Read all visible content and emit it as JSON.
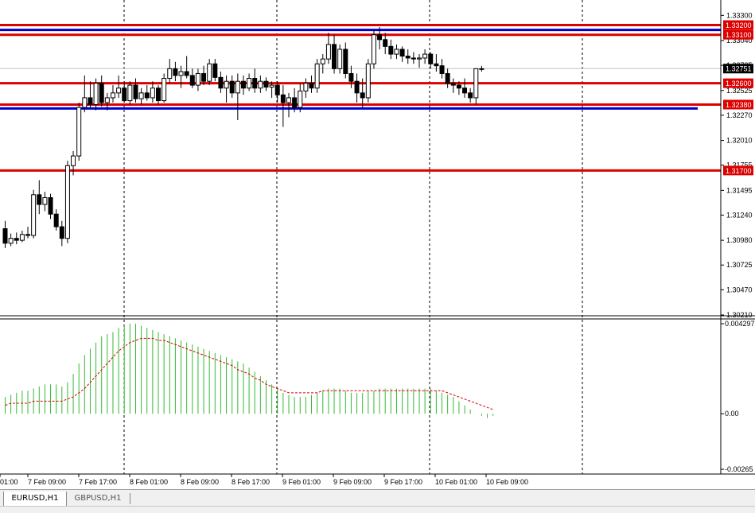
{
  "colors": {
    "candle": "#000000",
    "hline_red": "#dd0000",
    "hline_blue": "#0000cc",
    "bid_line": "#c0c0c0",
    "histogram": "#33bb33",
    "signal": "#dd0000",
    "grid": "#000000",
    "label_red_bg": "#dd0000",
    "label_dark_bg": "#000000"
  },
  "price_axis": {
    "ticks": [
      "1.33300",
      "1.33040",
      "1.32785",
      "1.32525",
      "1.32270",
      "1.32010",
      "1.31755",
      "1.31495",
      "1.31240",
      "1.30980",
      "1.30725",
      "1.30470",
      "1.30210"
    ],
    "range": [
      1.3021,
      1.3336
    ]
  },
  "level_labels": [
    {
      "text": "1.33200",
      "value": 1.332,
      "style": "red"
    },
    {
      "text": "1.33100",
      "value": 1.331,
      "style": "red"
    },
    {
      "text": "1.32751",
      "value": 1.32751,
      "style": "dark"
    },
    {
      "text": "1.32600",
      "value": 1.326,
      "style": "red"
    },
    {
      "text": "1.32380",
      "value": 1.3238,
      "style": "red"
    },
    {
      "text": "1.31700",
      "value": 1.317,
      "style": "red"
    }
  ],
  "hlines": [
    {
      "value": 1.332,
      "color": "red"
    },
    {
      "value": 1.3315,
      "color": "blue"
    },
    {
      "value": 1.331,
      "color": "red"
    },
    {
      "value": 1.326,
      "color": "red"
    },
    {
      "value": 1.3238,
      "color": "red"
    },
    {
      "value": 1.3234,
      "color": "blue",
      "partial": true
    },
    {
      "value": 1.317,
      "color": "red"
    }
  ],
  "bid": 1.32751,
  "indicator_axis": {
    "ticks": [
      "0.004297",
      "0.00",
      "-0.00265"
    ],
    "range": [
      -0.00265,
      0.004297
    ]
  },
  "time_axis": {
    "labels": [
      "01:00",
      "7 Feb 09:00",
      "7 Feb 17:00",
      "8 Feb 01:00",
      "8 Feb 09:00",
      "8 Feb 17:00",
      "9 Feb 01:00",
      "9 Feb 09:00",
      "9 Feb 17:00",
      "10 Feb 01:00",
      "10 Feb 09:00"
    ]
  },
  "tabs": [
    {
      "label": "EURUSD,H1",
      "active": true
    },
    {
      "label": "GBPUSD,H1",
      "active": false
    }
  ],
  "chart_data": {
    "type": "candlestick",
    "symbol": "EURUSD,H1",
    "ylim": [
      1.3021,
      1.3336
    ],
    "candles": [
      {
        "o": 1.311,
        "h": 1.3118,
        "l": 1.309,
        "c": 1.3095
      },
      {
        "o": 1.3095,
        "h": 1.3105,
        "l": 1.3092,
        "c": 1.31
      },
      {
        "o": 1.31,
        "h": 1.3106,
        "l": 1.3094,
        "c": 1.3098
      },
      {
        "o": 1.3098,
        "h": 1.3108,
        "l": 1.3096,
        "c": 1.3104
      },
      {
        "o": 1.3104,
        "h": 1.3112,
        "l": 1.31,
        "c": 1.3103
      },
      {
        "o": 1.3103,
        "h": 1.315,
        "l": 1.31,
        "c": 1.3145
      },
      {
        "o": 1.3145,
        "h": 1.316,
        "l": 1.3125,
        "c": 1.3135
      },
      {
        "o": 1.3135,
        "h": 1.3148,
        "l": 1.3128,
        "c": 1.3142
      },
      {
        "o": 1.3142,
        "h": 1.3146,
        "l": 1.312,
        "c": 1.3125
      },
      {
        "o": 1.3125,
        "h": 1.313,
        "l": 1.3108,
        "c": 1.3112
      },
      {
        "o": 1.3112,
        "h": 1.3118,
        "l": 1.3092,
        "c": 1.31
      },
      {
        "o": 1.31,
        "h": 1.318,
        "l": 1.3095,
        "c": 1.3175
      },
      {
        "o": 1.3175,
        "h": 1.319,
        "l": 1.3165,
        "c": 1.3185
      },
      {
        "o": 1.3185,
        "h": 1.324,
        "l": 1.318,
        "c": 1.3235
      },
      {
        "o": 1.3235,
        "h": 1.3268,
        "l": 1.323,
        "c": 1.3245
      },
      {
        "o": 1.3245,
        "h": 1.3262,
        "l": 1.3235,
        "c": 1.3238
      },
      {
        "o": 1.3238,
        "h": 1.3265,
        "l": 1.3232,
        "c": 1.326
      },
      {
        "o": 1.326,
        "h": 1.3268,
        "l": 1.3236,
        "c": 1.324
      },
      {
        "o": 1.324,
        "h": 1.325,
        "l": 1.3232,
        "c": 1.3245
      },
      {
        "o": 1.3245,
        "h": 1.3258,
        "l": 1.324,
        "c": 1.325
      },
      {
        "o": 1.325,
        "h": 1.3268,
        "l": 1.3245,
        "c": 1.3255
      },
      {
        "o": 1.3255,
        "h": 1.3262,
        "l": 1.324,
        "c": 1.3242
      },
      {
        "o": 1.3242,
        "h": 1.3262,
        "l": 1.3238,
        "c": 1.3258
      },
      {
        "o": 1.3258,
        "h": 1.3265,
        "l": 1.324,
        "c": 1.3244
      },
      {
        "o": 1.3244,
        "h": 1.3255,
        "l": 1.3238,
        "c": 1.325
      },
      {
        "o": 1.325,
        "h": 1.3258,
        "l": 1.3242,
        "c": 1.3245
      },
      {
        "o": 1.3245,
        "h": 1.3262,
        "l": 1.324,
        "c": 1.3255
      },
      {
        "o": 1.3255,
        "h": 1.3258,
        "l": 1.3238,
        "c": 1.3242
      },
      {
        "o": 1.3242,
        "h": 1.327,
        "l": 1.324,
        "c": 1.3265
      },
      {
        "o": 1.3265,
        "h": 1.3285,
        "l": 1.326,
        "c": 1.3275
      },
      {
        "o": 1.3275,
        "h": 1.3282,
        "l": 1.3262,
        "c": 1.3268
      },
      {
        "o": 1.3268,
        "h": 1.3278,
        "l": 1.3255,
        "c": 1.3272
      },
      {
        "o": 1.3272,
        "h": 1.3288,
        "l": 1.3265,
        "c": 1.3268
      },
      {
        "o": 1.3268,
        "h": 1.3275,
        "l": 1.3255,
        "c": 1.3258
      },
      {
        "o": 1.3258,
        "h": 1.3275,
        "l": 1.3252,
        "c": 1.327
      },
      {
        "o": 1.327,
        "h": 1.3278,
        "l": 1.3258,
        "c": 1.3262
      },
      {
        "o": 1.3262,
        "h": 1.3285,
        "l": 1.3258,
        "c": 1.328
      },
      {
        "o": 1.328,
        "h": 1.3285,
        "l": 1.3262,
        "c": 1.3266
      },
      {
        "o": 1.3266,
        "h": 1.3272,
        "l": 1.325,
        "c": 1.3255
      },
      {
        "o": 1.3255,
        "h": 1.3268,
        "l": 1.324,
        "c": 1.3262
      },
      {
        "o": 1.3262,
        "h": 1.3268,
        "l": 1.3245,
        "c": 1.325
      },
      {
        "o": 1.325,
        "h": 1.327,
        "l": 1.3222,
        "c": 1.3262
      },
      {
        "o": 1.3262,
        "h": 1.3268,
        "l": 1.3248,
        "c": 1.3255
      },
      {
        "o": 1.3255,
        "h": 1.327,
        "l": 1.3252,
        "c": 1.3265
      },
      {
        "o": 1.3265,
        "h": 1.3275,
        "l": 1.325,
        "c": 1.3255
      },
      {
        "o": 1.3255,
        "h": 1.3268,
        "l": 1.325,
        "c": 1.3262
      },
      {
        "o": 1.3262,
        "h": 1.3266,
        "l": 1.3252,
        "c": 1.3256
      },
      {
        "o": 1.3256,
        "h": 1.3262,
        "l": 1.3245,
        "c": 1.3258
      },
      {
        "o": 1.3258,
        "h": 1.3262,
        "l": 1.324,
        "c": 1.3248
      },
      {
        "o": 1.3248,
        "h": 1.3258,
        "l": 1.3215,
        "c": 1.324
      },
      {
        "o": 1.324,
        "h": 1.325,
        "l": 1.3225,
        "c": 1.3245
      },
      {
        "o": 1.3245,
        "h": 1.3255,
        "l": 1.323,
        "c": 1.3235
      },
      {
        "o": 1.3235,
        "h": 1.326,
        "l": 1.323,
        "c": 1.3252
      },
      {
        "o": 1.3252,
        "h": 1.3265,
        "l": 1.3245,
        "c": 1.326
      },
      {
        "o": 1.326,
        "h": 1.3268,
        "l": 1.325,
        "c": 1.3255
      },
      {
        "o": 1.3255,
        "h": 1.3285,
        "l": 1.325,
        "c": 1.328
      },
      {
        "o": 1.328,
        "h": 1.329,
        "l": 1.327,
        "c": 1.3285
      },
      {
        "o": 1.3285,
        "h": 1.3312,
        "l": 1.328,
        "c": 1.33
      },
      {
        "o": 1.33,
        "h": 1.331,
        "l": 1.327,
        "c": 1.3275
      },
      {
        "o": 1.3275,
        "h": 1.33,
        "l": 1.327,
        "c": 1.3295
      },
      {
        "o": 1.3295,
        "h": 1.3302,
        "l": 1.3265,
        "c": 1.327
      },
      {
        "o": 1.327,
        "h": 1.3278,
        "l": 1.3255,
        "c": 1.3262
      },
      {
        "o": 1.3262,
        "h": 1.327,
        "l": 1.324,
        "c": 1.325
      },
      {
        "o": 1.325,
        "h": 1.3265,
        "l": 1.3235,
        "c": 1.3245
      },
      {
        "o": 1.3245,
        "h": 1.3285,
        "l": 1.324,
        "c": 1.328
      },
      {
        "o": 1.328,
        "h": 1.3315,
        "l": 1.3275,
        "c": 1.331
      },
      {
        "o": 1.331,
        "h": 1.3318,
        "l": 1.3295,
        "c": 1.3305
      },
      {
        "o": 1.3305,
        "h": 1.3312,
        "l": 1.329,
        "c": 1.3298
      },
      {
        "o": 1.3298,
        "h": 1.3305,
        "l": 1.3285,
        "c": 1.329
      },
      {
        "o": 1.329,
        "h": 1.33,
        "l": 1.3285,
        "c": 1.3295
      },
      {
        "o": 1.3295,
        "h": 1.3298,
        "l": 1.3282,
        "c": 1.3288
      },
      {
        "o": 1.3288,
        "h": 1.3295,
        "l": 1.328,
        "c": 1.3286
      },
      {
        "o": 1.3286,
        "h": 1.3292,
        "l": 1.328,
        "c": 1.3285
      },
      {
        "o": 1.3285,
        "h": 1.329,
        "l": 1.3276,
        "c": 1.3286
      },
      {
        "o": 1.3286,
        "h": 1.3295,
        "l": 1.328,
        "c": 1.329
      },
      {
        "o": 1.329,
        "h": 1.3292,
        "l": 1.3275,
        "c": 1.328
      },
      {
        "o": 1.328,
        "h": 1.329,
        "l": 1.3272,
        "c": 1.3278
      },
      {
        "o": 1.3278,
        "h": 1.3285,
        "l": 1.3265,
        "c": 1.327
      },
      {
        "o": 1.327,
        "h": 1.3275,
        "l": 1.3255,
        "c": 1.326
      },
      {
        "o": 1.326,
        "h": 1.3265,
        "l": 1.325,
        "c": 1.3258
      },
      {
        "o": 1.3258,
        "h": 1.3262,
        "l": 1.3248,
        "c": 1.3255
      },
      {
        "o": 1.3255,
        "h": 1.3265,
        "l": 1.3245,
        "c": 1.325
      },
      {
        "o": 1.325,
        "h": 1.3255,
        "l": 1.324,
        "c": 1.3245
      },
      {
        "o": 1.3245,
        "h": 1.3275,
        "l": 1.3238,
        "c": 1.3275
      },
      {
        "o": 1.3275,
        "h": 1.3278,
        "l": 1.3272,
        "c": 1.3275
      }
    ],
    "indicator": {
      "name": "MACD",
      "histogram": [
        0.0008,
        0.0009,
        0.001,
        0.0011,
        0.0011,
        0.0012,
        0.0013,
        0.0014,
        0.0014,
        0.0014,
        0.0013,
        0.0015,
        0.0019,
        0.0024,
        0.0028,
        0.0031,
        0.0034,
        0.0037,
        0.0038,
        0.0039,
        0.0041,
        0.0042,
        0.0043,
        0.0043,
        0.0042,
        0.0041,
        0.004,
        0.0039,
        0.0038,
        0.0037,
        0.0036,
        0.0035,
        0.0034,
        0.0033,
        0.0032,
        0.0031,
        0.003,
        0.0029,
        0.0028,
        0.0027,
        0.0026,
        0.0025,
        0.0024,
        0.0022,
        0.002,
        0.0018,
        0.0016,
        0.0014,
        0.0012,
        0.001,
        0.0009,
        0.0008,
        0.0008,
        0.0008,
        0.0009,
        0.001,
        0.0011,
        0.0012,
        0.0012,
        0.0012,
        0.0011,
        0.001,
        0.001,
        0.001,
        0.0011,
        0.0011,
        0.0012,
        0.0012,
        0.0012,
        0.0012,
        0.0012,
        0.0012,
        0.0012,
        0.0012,
        0.0012,
        0.0012,
        0.0011,
        0.001,
        0.0009,
        0.0008,
        0.0006,
        0.0004,
        0.0002,
        0.0,
        -0.0001,
        -0.0002,
        -0.0001
      ],
      "signal": [
        0.0004,
        0.0005,
        0.0005,
        0.0005,
        0.0005,
        0.0006,
        0.0006,
        0.0006,
        0.0006,
        0.0006,
        0.0006,
        0.0007,
        0.0008,
        0.001,
        0.0012,
        0.0015,
        0.0018,
        0.0021,
        0.0024,
        0.0027,
        0.003,
        0.0032,
        0.0034,
        0.0035,
        0.0036,
        0.0036,
        0.0036,
        0.0035,
        0.0035,
        0.0034,
        0.0033,
        0.0032,
        0.0031,
        0.003,
        0.0029,
        0.0028,
        0.0027,
        0.0026,
        0.0025,
        0.0024,
        0.0023,
        0.0021,
        0.002,
        0.0019,
        0.0017,
        0.0016,
        0.0014,
        0.0013,
        0.0012,
        0.0011,
        0.001,
        0.001,
        0.001,
        0.001,
        0.001,
        0.001,
        0.0011,
        0.0011,
        0.0011,
        0.0011,
        0.0011,
        0.0011,
        0.0011,
        0.0011,
        0.0011,
        0.0011,
        0.0011,
        0.0011,
        0.0011,
        0.0011,
        0.0011,
        0.0011,
        0.0011,
        0.0011,
        0.0011,
        0.0011,
        0.0011,
        0.0011,
        0.001,
        0.0009,
        0.0008,
        0.0007,
        0.0006,
        0.0005,
        0.0004,
        0.0003,
        0.0002
      ]
    }
  }
}
